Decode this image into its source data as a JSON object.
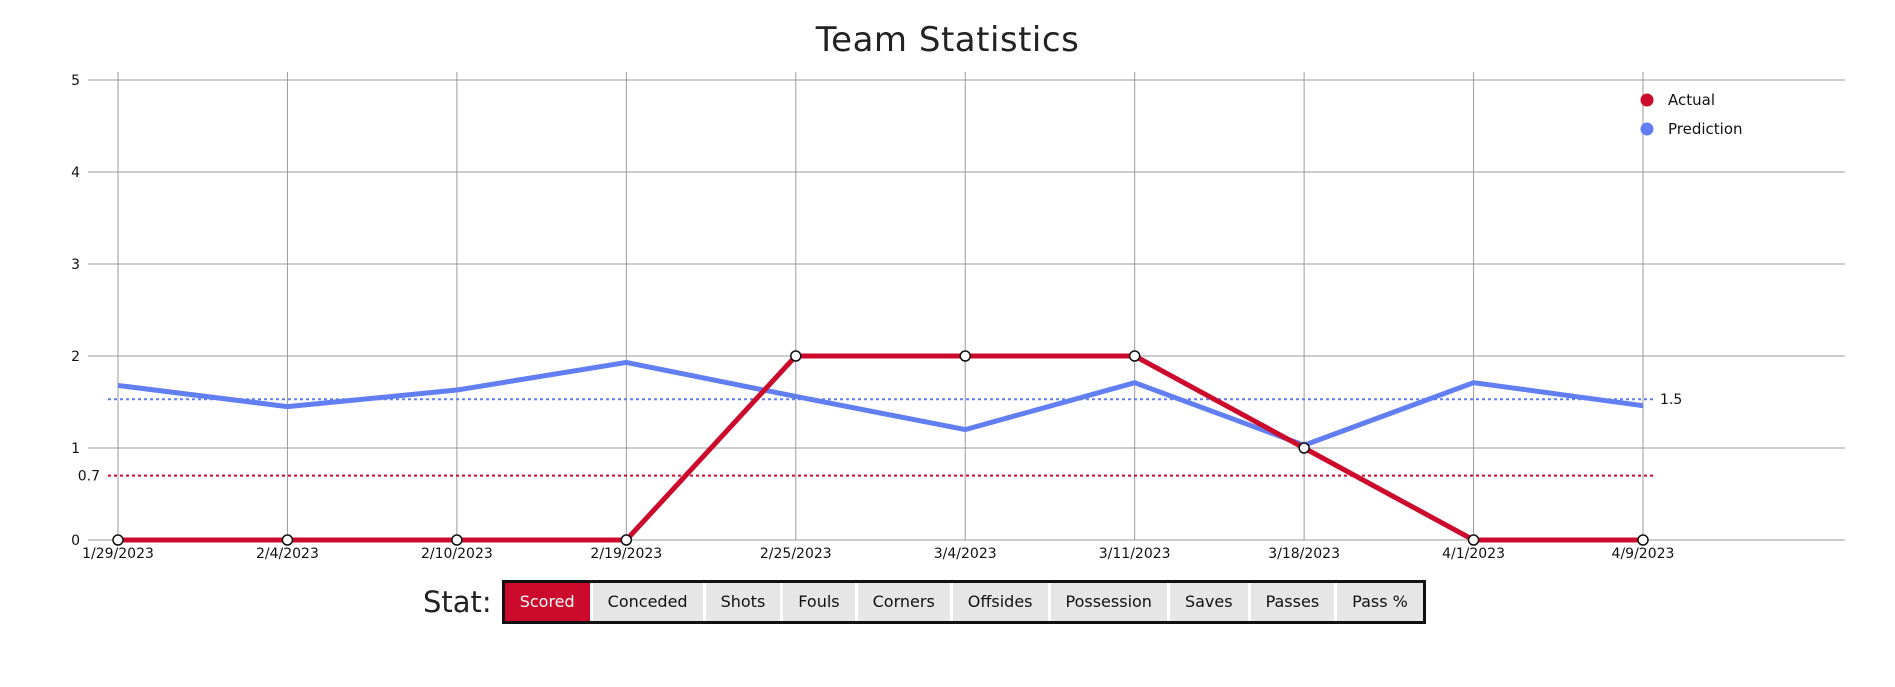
{
  "title": "Team Statistics",
  "chart_data": {
    "type": "line",
    "x": [
      "1/29/2023",
      "2/4/2023",
      "2/10/2023",
      "2/19/2023",
      "2/25/2023",
      "3/4/2023",
      "3/11/2023",
      "3/18/2023",
      "4/1/2023",
      "4/9/2023"
    ],
    "series": [
      {
        "name": "Actual",
        "color": "#cc0a2c",
        "values": [
          0,
          0,
          0,
          0,
          2,
          2,
          2,
          1,
          0,
          0
        ]
      },
      {
        "name": "Prediction",
        "color": "#617ef2",
        "values": [
          1.68,
          1.45,
          1.63,
          1.93,
          1.56,
          1.2,
          1.71,
          1.03,
          1.71,
          1.46
        ]
      }
    ],
    "reference_lines": [
      {
        "label": "0.7",
        "value": 0.7,
        "color": "#cc0a2c",
        "style": "dotted",
        "label_side": "left"
      },
      {
        "label": "1.5",
        "value": 1.53,
        "color": "#617ef2",
        "style": "dotted",
        "label_side": "right"
      }
    ],
    "yticks": [
      "0",
      "1",
      "2",
      "3",
      "4",
      "5"
    ],
    "ylim": [
      0,
      5
    ],
    "grid": true,
    "legend_position": "top-right"
  },
  "stat_selector": {
    "label": "Stat:",
    "active": "Scored",
    "options": [
      "Scored",
      "Conceded",
      "Shots",
      "Fouls",
      "Corners",
      "Offsides",
      "Possession",
      "Saves",
      "Passes",
      "Pass %"
    ]
  }
}
